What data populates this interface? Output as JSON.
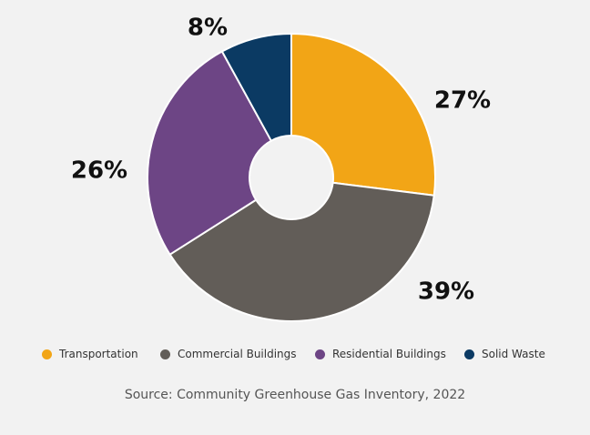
{
  "chart_data": {
    "type": "pie",
    "variant": "donut",
    "title": "",
    "categories": [
      "Transportation",
      "Commercial Buildings",
      "Residential Buildings",
      "Solid Waste"
    ],
    "values": [
      27,
      39,
      26,
      8
    ],
    "labels": [
      "27%",
      "39%",
      "26%",
      "8%"
    ],
    "colors": [
      "#f2a516",
      "#625d58",
      "#6d4585",
      "#0b3a63"
    ],
    "start_angle_deg": 0,
    "direction": "clockwise",
    "legend_position": "bottom",
    "source": "Source: Community Greenhouse Gas Inventory, 2022"
  }
}
